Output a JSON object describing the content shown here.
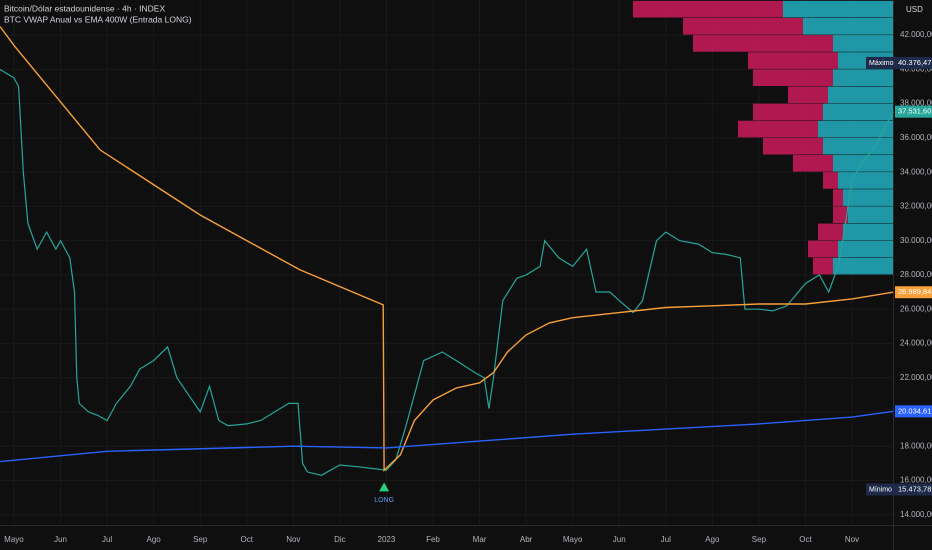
{
  "chart_data": {
    "type": "line",
    "title": "Bitcoin/Dólar estadounidense · 4h · INDEX",
    "subtitle": "BTC VWAP Anual vs EMA 400W (Entrada LONG)",
    "currency": "USD",
    "xlim": [
      -0.3,
      18.88
    ],
    "ylim": [
      13400,
      44050
    ],
    "xticks": [
      {
        "value": 0,
        "label": "Mayo"
      },
      {
        "value": 1,
        "label": "Jun"
      },
      {
        "value": 2,
        "label": "Jul"
      },
      {
        "value": 3,
        "label": "Ago"
      },
      {
        "value": 4,
        "label": "Sep"
      },
      {
        "value": 5,
        "label": "Oct"
      },
      {
        "value": 6,
        "label": "Nov"
      },
      {
        "value": 7,
        "label": "Dic"
      },
      {
        "value": 8,
        "label": "2023"
      },
      {
        "value": 9,
        "label": "Feb"
      },
      {
        "value": 10,
        "label": "Mar"
      },
      {
        "value": 11,
        "label": "Abr"
      },
      {
        "value": 12,
        "label": "Mayo"
      },
      {
        "value": 13,
        "label": "Jun"
      },
      {
        "value": 14,
        "label": "Jul"
      },
      {
        "value": 15,
        "label": "Ago"
      },
      {
        "value": 16,
        "label": "Sep"
      },
      {
        "value": 17,
        "label": "Oct"
      },
      {
        "value": 18,
        "label": "Nov"
      }
    ],
    "yticks": [
      {
        "value": 14000,
        "label": "14.000,00"
      },
      {
        "value": 16000,
        "label": "16.000,00"
      },
      {
        "value": 18000,
        "label": "18.000,00"
      },
      {
        "value": 20000,
        "label": "20.000,00"
      },
      {
        "value": 22000,
        "label": "22.000,00"
      },
      {
        "value": 24000,
        "label": "24.000,00"
      },
      {
        "value": 26000,
        "label": "26.000,00"
      },
      {
        "value": 28000,
        "label": "28.000,00"
      },
      {
        "value": 30000,
        "label": "30.000,00"
      },
      {
        "value": 32000,
        "label": "32.000,00"
      },
      {
        "value": 34000,
        "label": "34.000,00"
      },
      {
        "value": 36000,
        "label": "36.000,00"
      },
      {
        "value": 38000,
        "label": "38.000,00"
      },
      {
        "value": 40000,
        "label": "40.000,00"
      },
      {
        "value": 42000,
        "label": "42.000,00"
      }
    ],
    "series": [
      {
        "color": "#26a69a",
        "x": [
          -0.3,
          0,
          0.1,
          0.2,
          0.3,
          0.5,
          0.7,
          0.9,
          1.0,
          1.2,
          1.3,
          1.35,
          1.4,
          1.6,
          1.8,
          2.0,
          2.2,
          2.5,
          2.7,
          3.0,
          3.3,
          3.5,
          3.7,
          4.0,
          4.2,
          4.4,
          4.6,
          5.0,
          5.3,
          5.6,
          5.9,
          6.1,
          6.2,
          6.3,
          6.6,
          7.0,
          7.4,
          7.7,
          8.0,
          8.2,
          8.4,
          8.6,
          8.8,
          9.2,
          9.5,
          9.9,
          10.1,
          10.2,
          10.3,
          10.5,
          10.8,
          11.0,
          11.3,
          11.4,
          11.7,
          12.0,
          12.3,
          12.5,
          12.8,
          13.0,
          13.3,
          13.5,
          13.8,
          14.0,
          14.3,
          14.7,
          15.0,
          15.3,
          15.6,
          15.7,
          16.0,
          16.3,
          16.6,
          17.0,
          17.3,
          17.5,
          17.7,
          17.8,
          18.0,
          18.2,
          18.5,
          18.88
        ],
        "values": [
          40000,
          39500,
          39000,
          34000,
          31000,
          29500,
          30500,
          29500,
          30000,
          29000,
          27000,
          22000,
          20500,
          20000,
          19800,
          19500,
          20500,
          21500,
          22500,
          23000,
          23800,
          22000,
          21200,
          20000,
          21500,
          19500,
          19200,
          19300,
          19500,
          20000,
          20500,
          20500,
          17000,
          16500,
          16300,
          16900,
          16800,
          16700,
          16600,
          17200,
          19000,
          21000,
          23000,
          23500,
          23000,
          22300,
          22000,
          20200,
          22000,
          26500,
          27800,
          28000,
          28500,
          30000,
          29000,
          28500,
          29500,
          27000,
          27000,
          26500,
          25800,
          26500,
          30000,
          30500,
          30000,
          29800,
          29300,
          29200,
          29000,
          26000,
          26000,
          25900,
          26200,
          27500,
          28000,
          27000,
          28500,
          30000,
          33500,
          34500,
          35500,
          37531.6
        ]
      },
      {
        "color": "#f7a03a",
        "x": [
          -0.3,
          0,
          1.85,
          4.0,
          6.14,
          7.93,
          7.95,
          8.3,
          8.6,
          9.0,
          9.5,
          10.0,
          10.3,
          10.6,
          11.0,
          11.5,
          12.0,
          13.0,
          14.0,
          15.0,
          16.0,
          17.0,
          18.0,
          18.88
        ],
        "values": [
          42500,
          41400,
          35300,
          31500,
          28300,
          26250,
          16600,
          17500,
          19500,
          20700,
          21400,
          21700,
          22300,
          23500,
          24500,
          25200,
          25500,
          25800,
          26100,
          26200,
          26300,
          26300,
          26600,
          26989.84
        ]
      },
      {
        "color": "#2962ff",
        "x": [
          -0.3,
          2,
          6,
          8,
          10,
          12,
          14,
          16,
          18,
          18.88
        ],
        "values": [
          17100,
          17700,
          18000,
          17900,
          18300,
          18700,
          19000,
          19300,
          19700,
          20034.61
        ]
      }
    ],
    "volume_profile": {
      "price_levels": [
        28000,
        29000,
        30000,
        31000,
        32000,
        33000,
        34000,
        35000,
        36000,
        37000,
        38000,
        39000,
        40000,
        41000,
        42000,
        43000
      ],
      "buy": [
        60,
        55,
        50,
        45,
        50,
        55,
        60,
        70,
        75,
        70,
        65,
        60,
        55,
        60,
        90,
        110
      ],
      "sell": [
        20,
        30,
        25,
        15,
        10,
        15,
        40,
        60,
        80,
        70,
        40,
        80,
        90,
        140,
        120,
        150
      ]
    },
    "price_labels": [
      {
        "name": "Máximo",
        "value": 40376.47,
        "label": "40.376,47",
        "color": "#1e2a4a"
      },
      {
        "value": 37531.6,
        "label": "37.531,60",
        "color": "#26a69a"
      },
      {
        "value": 26989.84,
        "label": "26.989,84",
        "color": "#f7a03a"
      },
      {
        "value": 20034.61,
        "label": "20.034,61",
        "color": "#2962ff"
      },
      {
        "name": "Mínimo",
        "value": 15473.78,
        "label": "15.473,78",
        "color": "#1e2a4a"
      }
    ],
    "signal": {
      "x": 7.95,
      "y": 16300,
      "label": "LONG"
    }
  }
}
